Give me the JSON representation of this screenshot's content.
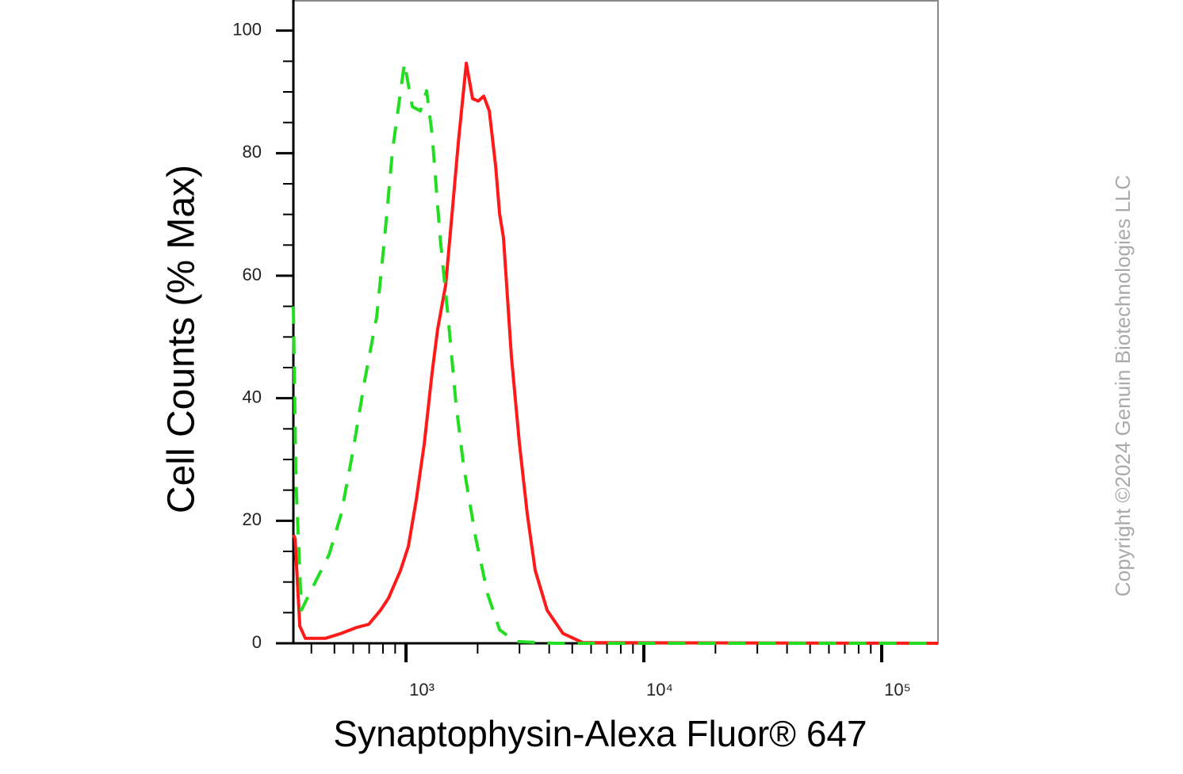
{
  "chart_data": {
    "type": "line",
    "x_label": "Synaptophysin-Alexa Fluor® 647",
    "y_label": "Cell Counts (% Max)",
    "watermark": "Copyright ©2024 Genuin Biotechnologies LLC",
    "xlog": true,
    "xlim": [
      336,
      172500
    ],
    "xticks": [
      {
        "value": 1000,
        "label": "10³"
      },
      {
        "value": 10000,
        "label": "10⁴"
      },
      {
        "value": 100000,
        "label": "10⁵"
      }
    ],
    "xminorticks": [
      400,
      500,
      600,
      700,
      800,
      900,
      2000,
      3000,
      4000,
      5000,
      6000,
      7000,
      8000,
      9000,
      20000,
      30000,
      40000,
      50000,
      60000,
      70000,
      80000,
      90000
    ],
    "ylim": [
      0,
      105
    ],
    "yticks": [
      0,
      20,
      40,
      60,
      80,
      100
    ],
    "yminorticks": [
      5,
      10,
      15,
      25,
      30,
      35,
      45,
      50,
      55,
      65,
      70,
      75,
      85,
      90,
      95
    ],
    "series": [
      {
        "color": "#ff1a1a",
        "dashed": false,
        "x": [
          336,
          341.6,
          357.6,
          377.3,
          457,
          533,
          621.5,
          697,
          782,
          845,
          948,
          1023,
          1105,
          1193,
          1288,
          1359,
          1468,
          1561,
          1660,
          1792,
          1905,
          2011,
          2122,
          2239,
          2381,
          2474,
          2570,
          2775,
          2997,
          3236,
          3494,
          3920,
          4571,
          5538,
          172500
        ],
        "values": [
          17.7,
          17.1,
          2.8,
          0.8,
          0.8,
          1.6,
          2.6,
          3.1,
          5.4,
          7.4,
          11.9,
          15.8,
          23.5,
          32.6,
          44.2,
          51.3,
          58.5,
          70.1,
          81.8,
          94.7,
          88.9,
          88.5,
          89.3,
          86.9,
          77.9,
          70.1,
          66.2,
          46.8,
          32.6,
          21.0,
          11.9,
          5.4,
          1.6,
          0.1,
          0
        ]
      },
      {
        "color": "#22dd22",
        "dashed": true,
        "x": [
          336,
          344,
          363,
          407,
          475,
          533,
          598,
          671,
          753,
          813,
          878,
          985,
          1063,
          1148,
          1221,
          1288,
          1391,
          1502,
          1622,
          1751,
          1965,
          2205,
          2474,
          2884,
          4233,
          172500
        ],
        "values": [
          55,
          27,
          5.4,
          9.3,
          14.5,
          21,
          31.3,
          43,
          53.3,
          66.2,
          80.5,
          94.7,
          87.6,
          86.9,
          90.2,
          83,
          66.2,
          53.3,
          39.1,
          28.7,
          17.1,
          8.0,
          2.2,
          0.3,
          0,
          0
        ]
      }
    ]
  }
}
